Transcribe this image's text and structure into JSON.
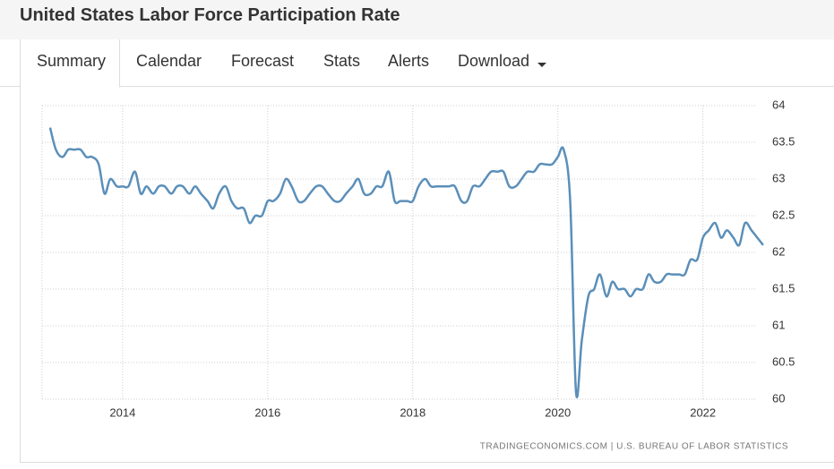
{
  "header": {
    "title": "United States Labor Force Participation Rate"
  },
  "tabs": [
    "Summary",
    "Calendar",
    "Forecast",
    "Stats",
    "Alerts",
    "Download"
  ],
  "chart_data": {
    "type": "line",
    "source": "TRADINGECONOMICS.COM | U.S. BUREAU OF LABOR STATISTICS",
    "x": [
      2013.0,
      2013.08,
      2013.17,
      2013.25,
      2013.33,
      2013.42,
      2013.5,
      2013.58,
      2013.67,
      2013.75,
      2013.83,
      2013.92,
      2014.0,
      2014.08,
      2014.17,
      2014.25,
      2014.33,
      2014.42,
      2014.5,
      2014.58,
      2014.67,
      2014.75,
      2014.83,
      2014.92,
      2015.0,
      2015.08,
      2015.17,
      2015.25,
      2015.33,
      2015.42,
      2015.5,
      2015.58,
      2015.67,
      2015.75,
      2015.83,
      2015.92,
      2016.0,
      2016.08,
      2016.17,
      2016.25,
      2016.33,
      2016.42,
      2016.5,
      2016.58,
      2016.67,
      2016.75,
      2016.83,
      2016.92,
      2017.0,
      2017.08,
      2017.17,
      2017.25,
      2017.33,
      2017.42,
      2017.5,
      2017.58,
      2017.67,
      2017.75,
      2017.83,
      2017.92,
      2018.0,
      2018.08,
      2018.17,
      2018.25,
      2018.33,
      2018.42,
      2018.5,
      2018.58,
      2018.67,
      2018.75,
      2018.83,
      2018.92,
      2019.0,
      2019.08,
      2019.17,
      2019.25,
      2019.33,
      2019.42,
      2019.5,
      2019.58,
      2019.67,
      2019.75,
      2019.83,
      2019.92,
      2020.0,
      2020.08,
      2020.17,
      2020.25,
      2020.33,
      2020.42,
      2020.5,
      2020.58,
      2020.67,
      2020.75,
      2020.83,
      2020.92,
      2021.0,
      2021.08,
      2021.17,
      2021.25,
      2021.33,
      2021.42,
      2021.5,
      2021.58,
      2021.67,
      2021.75,
      2021.83,
      2021.92,
      2022.0,
      2022.08,
      2022.17,
      2022.25,
      2022.33,
      2022.42,
      2022.5,
      2022.58,
      2022.67,
      2022.75,
      2022.83
    ],
    "series": [
      {
        "color": "#5b8fb9",
        "values": [
          63.7,
          63.4,
          63.3,
          63.4,
          63.4,
          63.4,
          63.3,
          63.3,
          63.2,
          62.8,
          63.0,
          62.9,
          62.9,
          62.9,
          63.1,
          62.8,
          62.9,
          62.8,
          62.9,
          62.9,
          62.8,
          62.9,
          62.9,
          62.8,
          62.9,
          62.8,
          62.7,
          62.6,
          62.8,
          62.9,
          62.7,
          62.6,
          62.6,
          62.4,
          62.5,
          62.5,
          62.7,
          62.7,
          62.8,
          63.0,
          62.9,
          62.7,
          62.7,
          62.8,
          62.9,
          62.9,
          62.8,
          62.7,
          62.7,
          62.8,
          62.9,
          63.0,
          62.8,
          62.8,
          62.9,
          62.9,
          63.1,
          62.7,
          62.7,
          62.7,
          62.7,
          62.9,
          63.0,
          62.9,
          62.9,
          62.9,
          62.9,
          62.9,
          62.7,
          62.7,
          62.9,
          62.9,
          63.0,
          63.1,
          63.1,
          63.1,
          62.9,
          62.9,
          63.0,
          63.1,
          63.1,
          63.2,
          63.2,
          63.2,
          63.3,
          63.4,
          62.7,
          60.1,
          60.8,
          61.4,
          61.5,
          61.7,
          61.4,
          61.6,
          61.5,
          61.5,
          61.4,
          61.5,
          61.5,
          61.7,
          61.6,
          61.6,
          61.7,
          61.7,
          61.7,
          61.7,
          61.9,
          61.9,
          62.2,
          62.3,
          62.4,
          62.2,
          62.3,
          62.2,
          62.1,
          62.4,
          62.3,
          62.2,
          62.1
        ]
      }
    ],
    "xlim": [
      2012.89,
      2022.93
    ],
    "xticks": [
      2014,
      2016,
      2018,
      2020,
      2022
    ],
    "ylim": [
      60,
      64
    ],
    "yticks": [
      60,
      60.5,
      61,
      61.5,
      62,
      62.5,
      63,
      63.5,
      64
    ],
    "grid": true
  }
}
